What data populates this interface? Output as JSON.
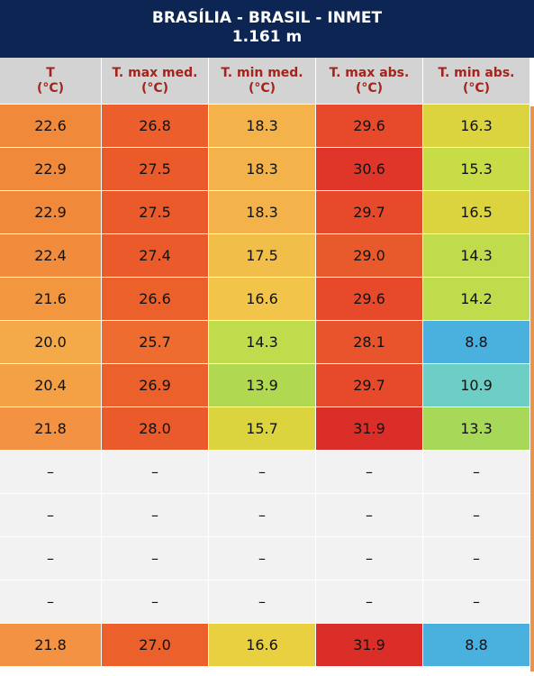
{
  "header": {
    "title": "BRASÍLIA - BRASIL - INMET",
    "subtitle": "1.161 m"
  },
  "table": {
    "columns": [
      {
        "name": "T",
        "unit": "(°C)"
      },
      {
        "name": "T. max med.",
        "unit": "(°C)"
      },
      {
        "name": "T. min med.",
        "unit": "(°C)"
      },
      {
        "name": "T. max abs.",
        "unit": "(°C)"
      },
      {
        "name": "T. min abs.",
        "unit": "(°C)"
      }
    ],
    "rows": [
      [
        "22.6",
        "26.8",
        "18.3",
        "29.6",
        "16.3"
      ],
      [
        "22.9",
        "27.5",
        "18.3",
        "30.6",
        "15.3"
      ],
      [
        "22.9",
        "27.5",
        "18.3",
        "29.7",
        "16.5"
      ],
      [
        "22.4",
        "27.4",
        "17.5",
        "29.0",
        "14.3"
      ],
      [
        "21.6",
        "26.6",
        "16.6",
        "29.6",
        "14.2"
      ],
      [
        "20.0",
        "25.7",
        "14.3",
        "28.1",
        "8.8"
      ],
      [
        "20.4",
        "26.9",
        "13.9",
        "29.7",
        "10.9"
      ],
      [
        "21.8",
        "28.0",
        "15.7",
        "31.9",
        "13.3"
      ],
      [
        "–",
        "–",
        "–",
        "–",
        "–"
      ],
      [
        "–",
        "–",
        "–",
        "–",
        "–"
      ],
      [
        "–",
        "–",
        "–",
        "–",
        "–"
      ],
      [
        "–",
        "–",
        "–",
        "–",
        "–"
      ],
      [
        "21.8",
        "27.0",
        "16.6",
        "31.9",
        "8.8"
      ]
    ],
    "colors": [
      [
        "#f08a3a",
        "#ec5f2c",
        "#f4b34a",
        "#e64a2a",
        "#dcd43e"
      ],
      [
        "#f08a3a",
        "#ea5a2a",
        "#f4b34a",
        "#e0362a",
        "#c8dc48"
      ],
      [
        "#f08a3a",
        "#ea5a2a",
        "#f4b34a",
        "#e64a2a",
        "#dcd43e"
      ],
      [
        "#f08c3c",
        "#ea5a2a",
        "#f2be4a",
        "#e85a2c",
        "#c0dc4c"
      ],
      [
        "#f29640",
        "#ec602c",
        "#f2c44a",
        "#e64a2a",
        "#bedc4c"
      ],
      [
        "#f4aa48",
        "#ee6c30",
        "#bedc4c",
        "#e8542c",
        "#4ab0de"
      ],
      [
        "#f4a044",
        "#ec602c",
        "#b0d850",
        "#e64a2a",
        "#6ccec4"
      ],
      [
        "#f29242",
        "#ea5a2a",
        "#dcd43e",
        "#dc2e28",
        "#a8d858"
      ],
      [
        "#f2f2f2",
        "#f2f2f2",
        "#f2f2f2",
        "#f2f2f2",
        "#f2f2f2"
      ],
      [
        "#f2f2f2",
        "#f2f2f2",
        "#f2f2f2",
        "#f2f2f2",
        "#f2f2f2"
      ],
      [
        "#f2f2f2",
        "#f2f2f2",
        "#f2f2f2",
        "#f2f2f2",
        "#f2f2f2"
      ],
      [
        "#f2f2f2",
        "#f2f2f2",
        "#f2f2f2",
        "#f2f2f2",
        "#f2f2f2"
      ],
      [
        "#f29242",
        "#ec602c",
        "#e8d040",
        "#dc2e28",
        "#4ab0de"
      ]
    ]
  }
}
